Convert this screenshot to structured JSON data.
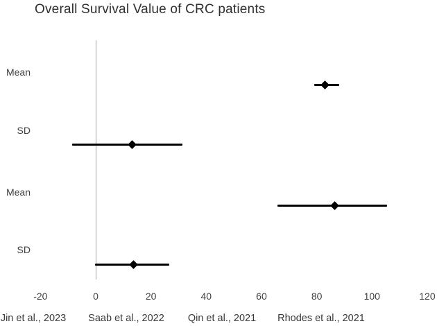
{
  "chart_data": {
    "type": "scatter",
    "title": "Overall Survival Value of CRC patients",
    "orientation": "horizontal-error-bars",
    "grid": "off",
    "legend": "none",
    "x_axis": {
      "range": [
        -20,
        120
      ],
      "ticks": [
        "-20",
        "0",
        "20",
        "40",
        "60",
        "80",
        "100",
        "120"
      ],
      "tick_values": [
        -20,
        0,
        20,
        40,
        60,
        80,
        100,
        120
      ],
      "zero_line": true
    },
    "rows": [
      {
        "label": "Mean",
        "center": 83,
        "low": 79,
        "high": 88
      },
      {
        "label": "SD",
        "center": 13.3,
        "low": -8.5,
        "high": 31.4
      },
      {
        "label": "Mean",
        "center": 86.6,
        "low": 65.8,
        "high": 105.5
      },
      {
        "label": "SD",
        "center": 13.8,
        "low": -0.3,
        "high": 26.6
      }
    ],
    "study_labels": [
      "Jin et al., 2023",
      "Saab et al., 2022",
      "Qin et al., 2021",
      "Rhodes et al., 2021"
    ],
    "colors": {
      "marker": "#000000",
      "error_bar": "#000000",
      "zero_line": "#a6a6a6",
      "text": "#404040"
    }
  }
}
